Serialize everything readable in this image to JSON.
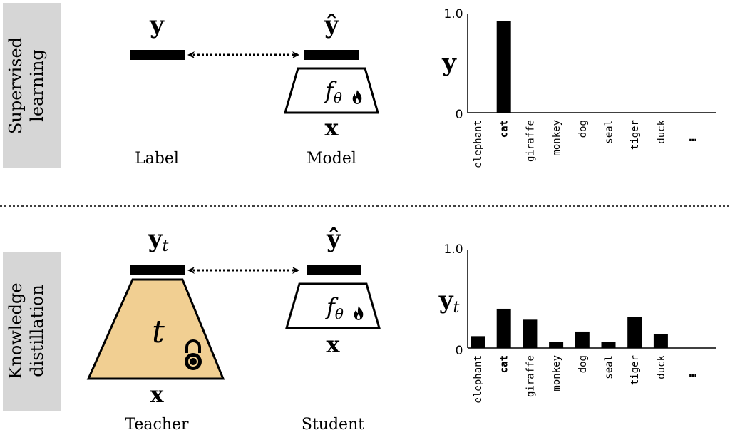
{
  "colors": {
    "teacher_fill": "#f1cf92",
    "section_label_bg": "#d6d6d6",
    "bar": "#000000",
    "flame": "#000000"
  },
  "icons": {
    "trainable": "flame-icon",
    "frozen": "lock-icon"
  },
  "supervised": {
    "section_label": [
      "Supervised",
      "learning"
    ],
    "label_vector": "y",
    "pred_vector": "ŷ",
    "model_fn": "f",
    "model_fn_sub": "θ",
    "input": "x",
    "left_caption": "Label",
    "right_caption": "Model"
  },
  "distillation": {
    "section_label": [
      "Knowledge",
      "distillation"
    ],
    "teacher_vector": "y",
    "teacher_vector_sub": "t",
    "pred_vector": "ŷ",
    "teacher_fn": "t",
    "student_fn": "f",
    "student_fn_sub": "θ",
    "input": "x",
    "left_caption": "Teacher",
    "right_caption": "Student"
  },
  "chart_data": [
    {
      "type": "bar",
      "ylabel": "y",
      "ylabel_sub": "",
      "ylim": [
        0,
        1.0
      ],
      "yticks": [
        "0",
        "1.0"
      ],
      "categories": [
        "elephant",
        "cat",
        "giraffe",
        "monkey",
        "dog",
        "seal",
        "tiger",
        "duck"
      ],
      "bold_category": "cat",
      "ellipsis": "…",
      "values": [
        0,
        1.0,
        0,
        0,
        0,
        0,
        0,
        0
      ]
    },
    {
      "type": "bar",
      "ylabel": "y",
      "ylabel_sub": "t",
      "ylim": [
        0,
        1.0
      ],
      "yticks": [
        "0",
        "1.0"
      ],
      "categories": [
        "elephant",
        "cat",
        "giraffe",
        "monkey",
        "dog",
        "seal",
        "tiger",
        "duck"
      ],
      "bold_category": "cat",
      "ellipsis": "…",
      "values": [
        0.13,
        0.43,
        0.31,
        0.07,
        0.18,
        0.07,
        0.34,
        0.15
      ]
    }
  ]
}
